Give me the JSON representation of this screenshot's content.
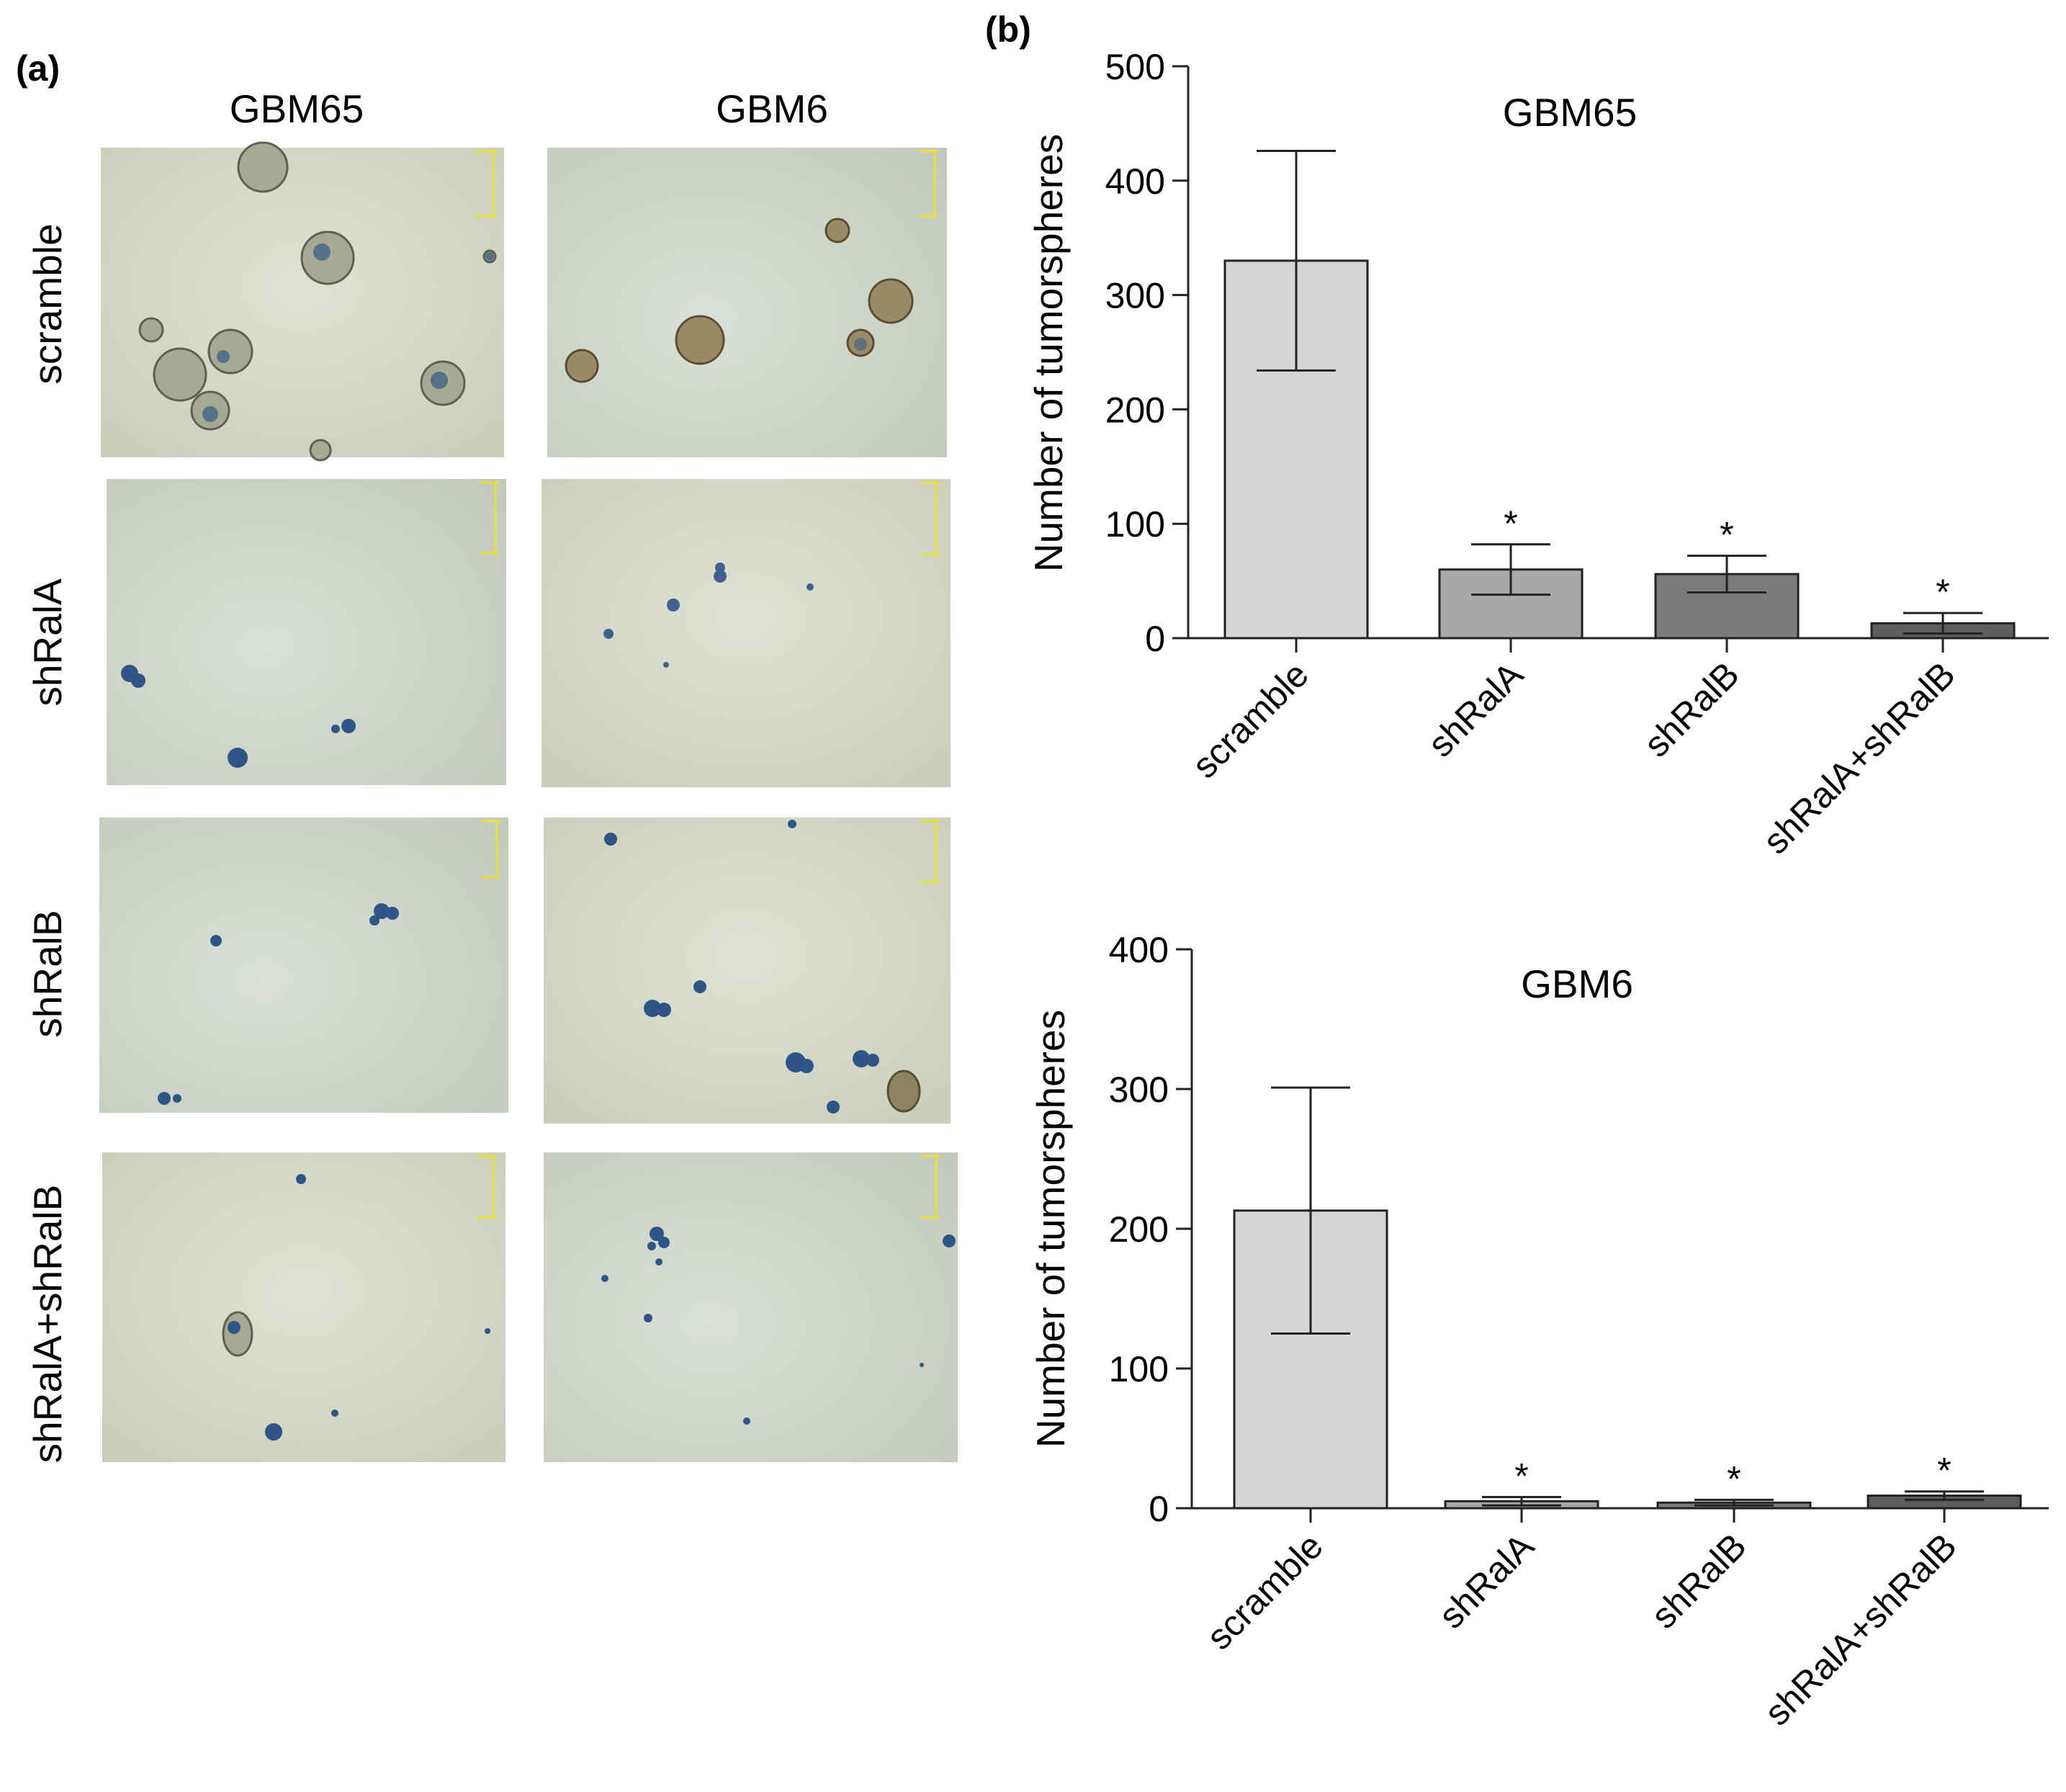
{
  "panel_a": {
    "label": "(a)",
    "columns": [
      "GBM65",
      "GBM6"
    ],
    "rows": [
      "scramble",
      "shRalA",
      "shRalB",
      "shRalA+shRalB"
    ]
  },
  "panel_b": {
    "label": "(b)"
  },
  "chart_data": [
    {
      "type": "bar",
      "title": "GBM65",
      "xlabel": "",
      "ylabel": "Number of tumorspheres",
      "ylim": [
        0,
        500
      ],
      "yticks": [
        0,
        100,
        200,
        300,
        400,
        500
      ],
      "categories": [
        "scramble",
        "shRalA",
        "shRalB",
        "shRalA+shRalB"
      ],
      "values": [
        330,
        60,
        56,
        13
      ],
      "error": [
        96,
        22,
        16,
        9
      ],
      "significance": [
        "",
        "*",
        "*",
        "*"
      ],
      "bar_colors": [
        "#d6d6d6",
        "#a9a9a9",
        "#7b7b7b",
        "#5e5e5e"
      ]
    },
    {
      "type": "bar",
      "title": "GBM6",
      "xlabel": "",
      "ylabel": "Number of tumorspheres",
      "ylim": [
        0,
        400
      ],
      "yticks": [
        0,
        100,
        200,
        300,
        400
      ],
      "categories": [
        "scramble",
        "shRalA",
        "shRalB",
        "shRalA+shRalB"
      ],
      "values": [
        213,
        5,
        4,
        9
      ],
      "error": [
        88,
        3,
        2,
        3
      ],
      "significance": [
        "",
        "*",
        "*",
        "*"
      ],
      "bar_colors": [
        "#d6d6d6",
        "#a9a9a9",
        "#7b7b7b",
        "#5e5e5e"
      ]
    }
  ]
}
